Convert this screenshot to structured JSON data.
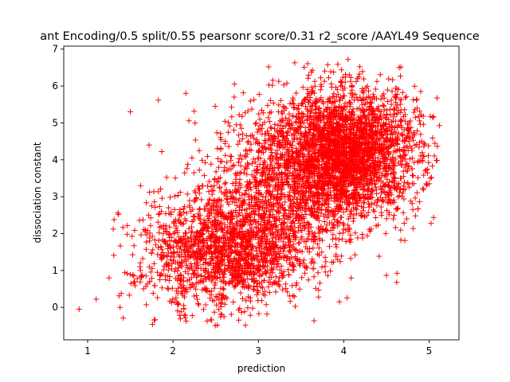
{
  "chart_data": {
    "type": "scatter",
    "title": "ant Encoding/0.5 split/0.55 pearsonr score/0.31 r2_score /AAYL49 Sequence",
    "xlabel": "prediction",
    "ylabel": "dissociation constant",
    "xlim": [
      0.72,
      5.35
    ],
    "ylim": [
      -0.88,
      7.08
    ],
    "xticks": [
      1,
      2,
      3,
      4,
      5
    ],
    "yticks": [
      0,
      1,
      2,
      3,
      4,
      5,
      6,
      7
    ],
    "grid": false,
    "legend": "none",
    "marker": "+",
    "color": "#ff0000",
    "series": [
      {
        "points_note_free": true,
        "clusters": [
          {
            "cx": 4.05,
            "cy": 4.2,
            "sx": 0.42,
            "sy": 0.85,
            "n": 2600
          },
          {
            "cx": 3.35,
            "cy": 3.3,
            "sx": 0.45,
            "sy": 1.1,
            "n": 1200
          },
          {
            "cx": 2.7,
            "cy": 1.55,
            "sx": 0.42,
            "sy": 0.75,
            "n": 1300
          },
          {
            "cx": 2.1,
            "cy": 1.3,
            "sx": 0.35,
            "sy": 0.9,
            "n": 300
          }
        ],
        "outliers": [
          [
            0.9,
            -0.05
          ],
          [
            1.1,
            0.22
          ],
          [
            1.3,
            2.12
          ],
          [
            1.5,
            5.3
          ],
          [
            1.62,
            3.3
          ],
          [
            1.72,
            4.4
          ],
          [
            2.15,
            5.8
          ],
          [
            2.52,
            -0.48
          ],
          [
            3.1,
            -0.18
          ],
          [
            3.95,
            0.15
          ],
          [
            4.62,
            0.68
          ],
          [
            4.65,
            6.5
          ],
          [
            5.05,
            5.17
          ],
          [
            5.12,
            4.93
          ],
          [
            5.0,
            3.35
          ],
          [
            4.05,
            6.72
          ],
          [
            3.12,
            6.52
          ],
          [
            2.72,
            6.05
          ],
          [
            1.25,
            0.8
          ],
          [
            1.38,
            0.0
          ]
        ]
      }
    ]
  }
}
